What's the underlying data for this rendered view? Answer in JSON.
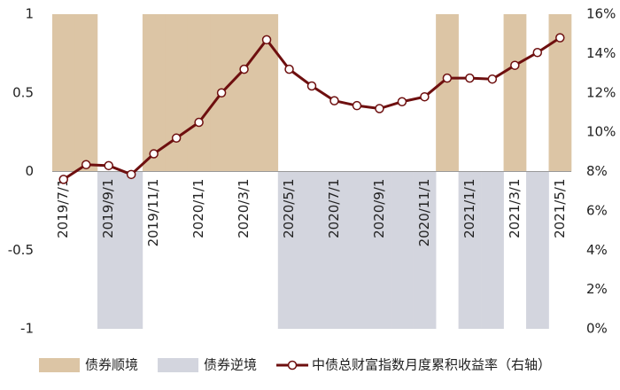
{
  "chart_data": {
    "type": "bar-line",
    "categories": [
      "2019/7/1",
      null,
      "2019/9/1",
      null,
      "2019/11/1",
      null,
      "2020/1/1",
      null,
      "2020/3/1",
      null,
      "2020/5/1",
      null,
      "2020/7/1",
      null,
      "2020/9/1",
      null,
      "2020/11/1",
      null,
      "2021/1/1",
      null,
      "2021/3/1",
      null,
      "2021/5/1"
    ],
    "series": [
      {
        "name": "债券顺境",
        "type": "bar",
        "color": "#dcc5a5",
        "values": [
          1,
          1,
          null,
          null,
          1,
          1,
          1,
          1,
          1,
          1,
          null,
          null,
          null,
          null,
          null,
          null,
          null,
          1,
          null,
          null,
          1,
          null,
          1
        ]
      },
      {
        "name": "债券逆境",
        "type": "bar",
        "color": "#d3d5de",
        "values": [
          null,
          null,
          -1,
          -1,
          null,
          null,
          null,
          null,
          null,
          null,
          -1,
          -1,
          -1,
          -1,
          -1,
          -1,
          -1,
          null,
          -1,
          -1,
          null,
          -1,
          null
        ]
      },
      {
        "name": "中债总财富指数月度累积收益率（右轴）",
        "type": "line",
        "axis": "y2",
        "color": "#6e0f0f",
        "values": [
          7.6,
          8.35,
          8.3,
          7.85,
          8.9,
          9.7,
          10.5,
          12.0,
          13.2,
          14.7,
          13.2,
          12.35,
          11.6,
          11.35,
          11.2,
          11.55,
          11.8,
          12.75,
          12.75,
          12.7,
          13.4,
          14.05,
          14.8
        ]
      }
    ],
    "ylim": [
      -1,
      1
    ],
    "yticks": [
      -1,
      -0.5,
      0,
      0.5,
      1
    ],
    "y2lim": [
      0,
      16
    ],
    "y2ticks": [
      {
        "value": 0,
        "label": "0%"
      },
      {
        "value": 2,
        "label": "2%"
      },
      {
        "value": 4,
        "label": "4%"
      },
      {
        "value": 6,
        "label": "6%"
      },
      {
        "value": 8,
        "label": "8%"
      },
      {
        "value": 10,
        "label": "10%"
      },
      {
        "value": 12,
        "label": "12%"
      },
      {
        "value": 14,
        "label": "14%"
      },
      {
        "value": 16,
        "label": "16%"
      }
    ]
  }
}
